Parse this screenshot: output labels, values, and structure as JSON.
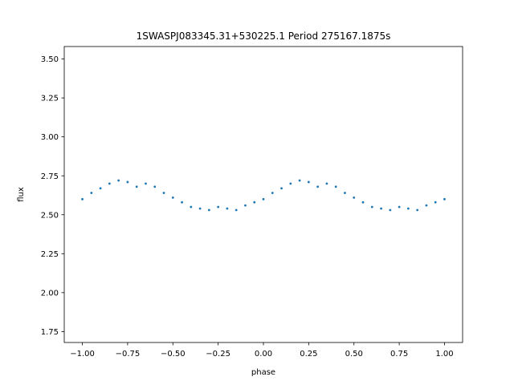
{
  "chart_data": {
    "type": "scatter",
    "title": "1SWASPJ083345.31+530225.1 Period 275167.1875s",
    "xlabel": "phase",
    "ylabel": "flux",
    "xlim": [
      -1.1,
      1.1
    ],
    "ylim": [
      1.68,
      3.58
    ],
    "x_ticks": [
      -1.0,
      -0.75,
      -0.5,
      -0.25,
      0.0,
      0.25,
      0.5,
      0.75,
      1.0
    ],
    "x_tick_labels": [
      "−1.00",
      "−0.75",
      "−0.50",
      "−0.25",
      "0.00",
      "0.25",
      "0.50",
      "0.75",
      "1.00"
    ],
    "y_ticks": [
      1.75,
      2.0,
      2.25,
      2.5,
      2.75,
      3.0,
      3.25,
      3.5
    ],
    "y_tick_labels": [
      "1.75",
      "2.00",
      "2.25",
      "2.50",
      "2.75",
      "3.00",
      "3.25",
      "3.50"
    ],
    "grid": false,
    "marker_color": "#1f77b4",
    "series": [
      {
        "x": [
          -1.0,
          -0.95,
          -0.9,
          -0.85,
          -0.8,
          -0.75,
          -0.7,
          -0.65,
          -0.6,
          -0.55,
          -0.5,
          -0.45,
          -0.4,
          -0.35,
          -0.3,
          -0.25,
          -0.2,
          -0.15,
          -0.1,
          -0.05,
          0.0,
          0.05,
          0.1,
          0.15,
          0.2,
          0.25,
          0.3,
          0.35,
          0.4,
          0.45,
          0.5,
          0.55,
          0.6,
          0.65,
          0.7,
          0.75,
          0.8,
          0.85,
          0.9,
          0.95,
          1.0
        ],
        "y": [
          2.6,
          2.64,
          2.67,
          2.7,
          2.72,
          2.71,
          2.68,
          2.7,
          2.68,
          2.64,
          2.61,
          2.58,
          2.55,
          2.54,
          2.53,
          2.55,
          2.54,
          2.53,
          2.56,
          2.58,
          2.6,
          2.64,
          2.67,
          2.7,
          2.72,
          2.71,
          2.68,
          2.7,
          2.68,
          2.64,
          2.61,
          2.58,
          2.55,
          2.54,
          2.53,
          2.55,
          2.54,
          2.53,
          2.56,
          2.58,
          2.6
        ]
      }
    ]
  }
}
